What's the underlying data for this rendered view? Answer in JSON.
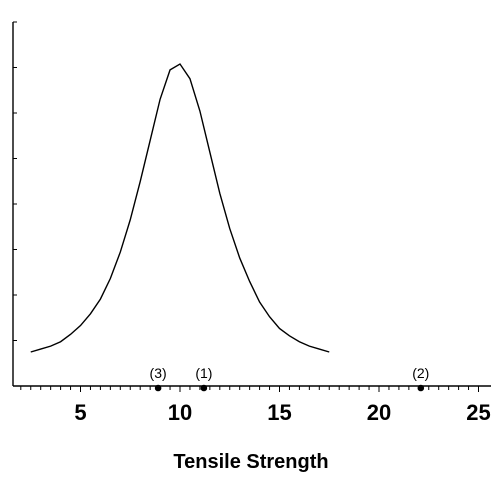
{
  "chart_data": {
    "type": "line",
    "title": "",
    "xlabel": "Tensile Strength",
    "ylabel": "",
    "xlim": [
      1.5,
      25
    ],
    "x_ticks": [
      5,
      10,
      15,
      20,
      25
    ],
    "x_minor_step": 0.5,
    "y_ticks_visible": true,
    "y_tick_count": 8,
    "grid": false,
    "legend": "none",
    "series": [
      {
        "type": "line",
        "values": [
          {
            "x": 2.5,
            "y": 0.02
          },
          {
            "x": 3.0,
            "y": 0.03
          },
          {
            "x": 3.5,
            "y": 0.04
          },
          {
            "x": 4.0,
            "y": 0.055
          },
          {
            "x": 4.5,
            "y": 0.08
          },
          {
            "x": 5.0,
            "y": 0.11
          },
          {
            "x": 5.5,
            "y": 0.15
          },
          {
            "x": 6.0,
            "y": 0.2
          },
          {
            "x": 6.5,
            "y": 0.27
          },
          {
            "x": 7.0,
            "y": 0.36
          },
          {
            "x": 7.5,
            "y": 0.47
          },
          {
            "x": 8.0,
            "y": 0.6
          },
          {
            "x": 8.5,
            "y": 0.74
          },
          {
            "x": 9.0,
            "y": 0.88
          },
          {
            "x": 9.5,
            "y": 0.98
          },
          {
            "x": 10.0,
            "y": 1.0
          },
          {
            "x": 10.5,
            "y": 0.95
          },
          {
            "x": 11.0,
            "y": 0.84
          },
          {
            "x": 11.5,
            "y": 0.7
          },
          {
            "x": 12.0,
            "y": 0.56
          },
          {
            "x": 12.5,
            "y": 0.44
          },
          {
            "x": 13.0,
            "y": 0.34
          },
          {
            "x": 13.5,
            "y": 0.26
          },
          {
            "x": 14.0,
            "y": 0.19
          },
          {
            "x": 14.5,
            "y": 0.14
          },
          {
            "x": 15.0,
            "y": 0.1
          },
          {
            "x": 15.5,
            "y": 0.075
          },
          {
            "x": 16.0,
            "y": 0.055
          },
          {
            "x": 16.5,
            "y": 0.04
          },
          {
            "x": 17.0,
            "y": 0.03
          },
          {
            "x": 17.5,
            "y": 0.02
          }
        ]
      },
      {
        "type": "scatter",
        "points": [
          {
            "label": "(3)",
            "x": 8.9
          },
          {
            "label": "(1)",
            "x": 11.2
          },
          {
            "label": "(2)",
            "x": 22.1
          }
        ]
      }
    ]
  },
  "colors": {
    "background": "#ffffff",
    "foreground": "#000000"
  }
}
